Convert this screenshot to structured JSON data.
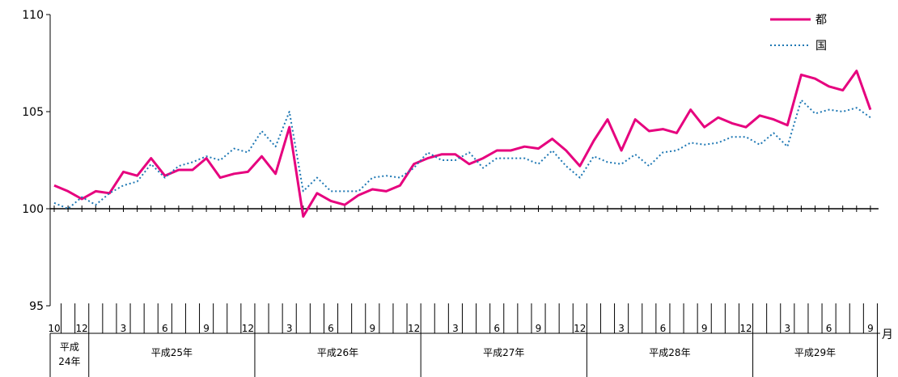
{
  "chart_data": {
    "type": "line",
    "title": "",
    "xlabel": "月",
    "ylabel": "",
    "ylim": [
      95,
      110
    ],
    "yticks": [
      "95",
      "100",
      "105",
      "110"
    ],
    "legend": {
      "position": "top-right"
    },
    "month_tick_labels": [
      "10",
      "12",
      "3",
      "6",
      "9",
      "12",
      "3",
      "6",
      "9",
      "12",
      "3",
      "6",
      "9",
      "12",
      "3",
      "6",
      "9",
      "12",
      "3",
      "6",
      "9"
    ],
    "year_groups": [
      {
        "label": "平成\n24年",
        "months": 3
      },
      {
        "label": "平成25年",
        "months": 12
      },
      {
        "label": "平成26年",
        "months": 12
      },
      {
        "label": "平成27年",
        "months": 12
      },
      {
        "label": "平成28年",
        "months": 12
      },
      {
        "label": "平成29年",
        "months": 9
      }
    ],
    "series": [
      {
        "name": "都",
        "color": "#e6007e",
        "style": "solid",
        "values": [
          101.2,
          100.9,
          100.5,
          100.9,
          100.8,
          101.9,
          101.7,
          102.6,
          101.7,
          102.0,
          102.0,
          102.6,
          101.6,
          101.8,
          101.9,
          102.7,
          101.8,
          104.2,
          99.6,
          100.8,
          100.4,
          100.2,
          100.7,
          101.0,
          100.9,
          101.2,
          102.3,
          102.6,
          102.8,
          102.8,
          102.3,
          102.6,
          103.0,
          103.0,
          103.2,
          103.1,
          103.6,
          103.0,
          102.2,
          103.5,
          104.6,
          103.0,
          104.6,
          104.0,
          104.1,
          103.9,
          105.1,
          104.2,
          104.7,
          104.4,
          104.2,
          104.8,
          104.6,
          104.3,
          106.9,
          106.7,
          106.3,
          106.1,
          107.1,
          105.1
        ]
      },
      {
        "name": "国",
        "color": "#1f78b4",
        "style": "dotted",
        "values": [
          100.3,
          100.0,
          100.6,
          100.2,
          100.8,
          101.2,
          101.4,
          102.3,
          101.6,
          102.2,
          102.4,
          102.7,
          102.5,
          103.1,
          102.9,
          104.0,
          103.2,
          105.0,
          100.9,
          101.6,
          100.9,
          100.9,
          100.9,
          101.6,
          101.7,
          101.6,
          102.1,
          102.9,
          102.5,
          102.5,
          102.9,
          102.1,
          102.6,
          102.6,
          102.6,
          102.3,
          103.0,
          102.2,
          101.6,
          102.7,
          102.4,
          102.3,
          102.8,
          102.2,
          102.9,
          103.0,
          103.4,
          103.3,
          103.4,
          103.7,
          103.7,
          103.3,
          103.9,
          103.2,
          105.6,
          104.9,
          105.1,
          105.0,
          105.2,
          104.7
        ]
      }
    ]
  }
}
